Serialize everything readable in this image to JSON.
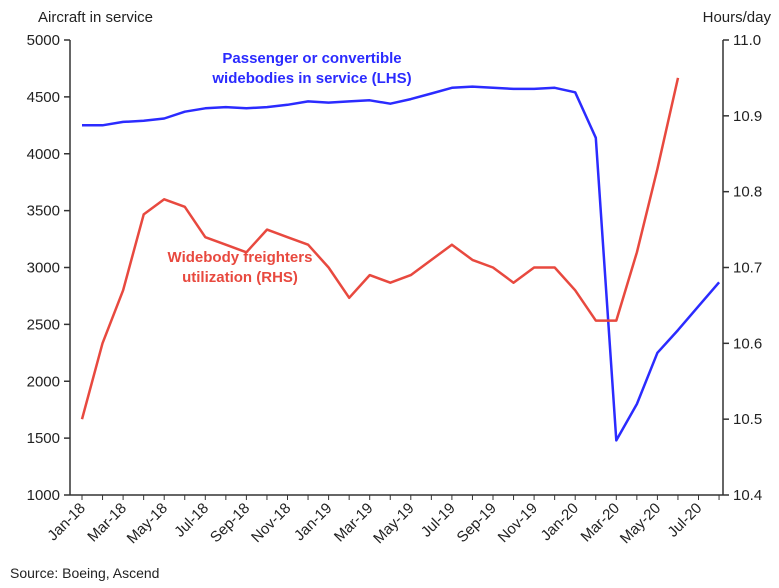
{
  "chart_data": {
    "type": "line",
    "left_axis_title": "Aircraft in service",
    "right_axis_title": "Hours/day",
    "y_left": {
      "min": 1000,
      "max": 5000,
      "ticks": [
        "1000",
        "1500",
        "2000",
        "2500",
        "3000",
        "3500",
        "4000",
        "4500",
        "5000"
      ]
    },
    "y_right": {
      "min": 10.4,
      "max": 11.0,
      "ticks": [
        "10.4",
        "10.5",
        "10.6",
        "10.7",
        "10.8",
        "10.9",
        "11.0"
      ]
    },
    "x_categories": [
      "Jan-18",
      "Feb-18",
      "Mar-18",
      "Apr-18",
      "May-18",
      "Jun-18",
      "Jul-18",
      "Aug-18",
      "Sep-18",
      "Oct-18",
      "Nov-18",
      "Dec-18",
      "Jan-19",
      "Feb-19",
      "Mar-19",
      "Apr-19",
      "May-19",
      "Jun-19",
      "Jul-19",
      "Aug-19",
      "Sep-19",
      "Oct-19",
      "Nov-19",
      "Dec-19",
      "Jan-20",
      "Feb-20",
      "Mar-20",
      "Apr-20",
      "May-20",
      "Jun-20",
      "Jul-20",
      "Aug-20"
    ],
    "x_tick_labels": [
      "Jan-18",
      "Mar-18",
      "May-18",
      "Jul-18",
      "Sep-18",
      "Nov-18",
      "Jan-19",
      "Mar-19",
      "May-19",
      "Jul-19",
      "Sep-19",
      "Nov-19",
      "Jan-20",
      "Mar-20",
      "May-20",
      "Jul-20"
    ],
    "series": [
      {
        "name": "Passenger or convertible widebodies in service (LHS)",
        "label_lines": [
          "Passenger or convertible",
          "widebodies in service (LHS)"
        ],
        "axis": "left",
        "color": "#2b2bff",
        "values": [
          4250,
          4250,
          4280,
          4290,
          4310,
          4370,
          4400,
          4410,
          4400,
          4410,
          4430,
          4460,
          4450,
          4460,
          4470,
          4440,
          4480,
          4530,
          4580,
          4590,
          4580,
          4570,
          4570,
          4580,
          4540,
          4140,
          1480,
          1800,
          2250,
          2450,
          2660,
          2870
        ]
      },
      {
        "name": "Widebody freighters utilization (RHS)",
        "label_lines": [
          "Widebody freighters",
          "utilization (RHS)"
        ],
        "axis": "right",
        "color": "#e8493f",
        "values": [
          10.5,
          10.6,
          10.67,
          10.77,
          10.79,
          10.78,
          10.74,
          10.73,
          10.72,
          10.75,
          10.74,
          10.73,
          10.7,
          10.66,
          10.69,
          10.68,
          10.69,
          10.71,
          10.73,
          10.71,
          10.7,
          10.68,
          10.7,
          10.7,
          10.67,
          10.63,
          10.63,
          10.72,
          10.83,
          10.95
        ]
      }
    ],
    "source": "Source: Boeing, Ascend"
  }
}
